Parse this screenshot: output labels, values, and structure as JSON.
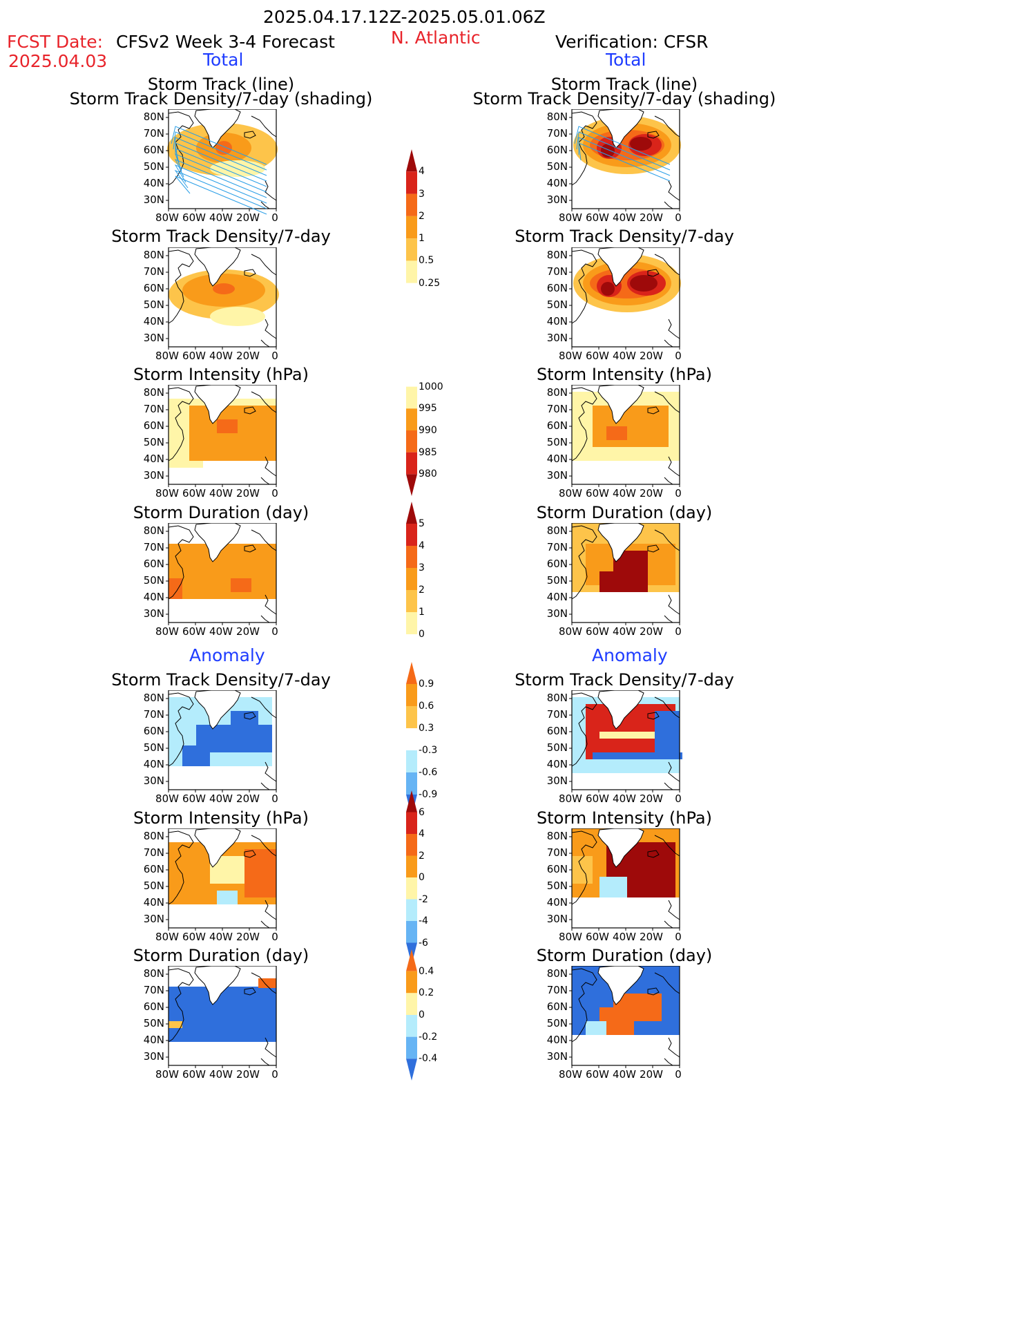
{
  "header": {
    "date_range": "2025.04.17.12Z-2025.05.01.06Z",
    "fcst_label": "FCST Date:",
    "fcst_date": "2025.04.03",
    "forecast_title": "CFSv2 Week 3-4 Forecast",
    "region": "N. Atlantic",
    "verification_title": "Verification: CFSR",
    "total_left": "Total",
    "total_right": "Total",
    "anomaly_left": "Anomaly",
    "anomaly_right": "Anomaly"
  },
  "titles": {
    "track_line": "Storm Track (line)",
    "track_shading": "Storm Track Density/7-day (shading)",
    "density": "Storm Track Density/7-day",
    "intensity": "Storm Intensity (hPa)",
    "duration": "Storm Duration (day)"
  },
  "axes": {
    "lat_ticks": [
      "80N",
      "70N",
      "60N",
      "50N",
      "40N",
      "30N"
    ],
    "lon_ticks": [
      "80W",
      "60W",
      "40W",
      "20W",
      "0"
    ]
  },
  "colorbars": {
    "density_total": [
      "4",
      "3",
      "2",
      "1",
      "0.5",
      "0.25"
    ],
    "intensity_total": [
      "1000",
      "995",
      "990",
      "985",
      "980"
    ],
    "duration_total": [
      "5",
      "4",
      "3",
      "2",
      "1",
      "0"
    ],
    "density_anom": [
      "0.9",
      "0.6",
      "0.3",
      "-0.3",
      "-0.6",
      "-0.9"
    ],
    "intensity_anom": [
      "6",
      "4",
      "2",
      "0",
      "-2",
      "-4",
      "-6"
    ],
    "duration_anom": [
      "0.4",
      "0.2",
      "0",
      "-0.2",
      "-0.4"
    ]
  },
  "colors": {
    "title_red": "#e8232a",
    "title_blue": "#1e3cff",
    "pale_yellow": "#fff5a8",
    "light_orange": "#fdc44a",
    "orange": "#f99b1a",
    "dark_orange": "#f56a18",
    "red": "#d9241a",
    "dark_red": "#9e0a0a",
    "light_blue": "#b4ecfc",
    "mid_blue": "#66b4f4",
    "blue": "#2f6fdc",
    "track_line": "#2a9ee6"
  }
}
